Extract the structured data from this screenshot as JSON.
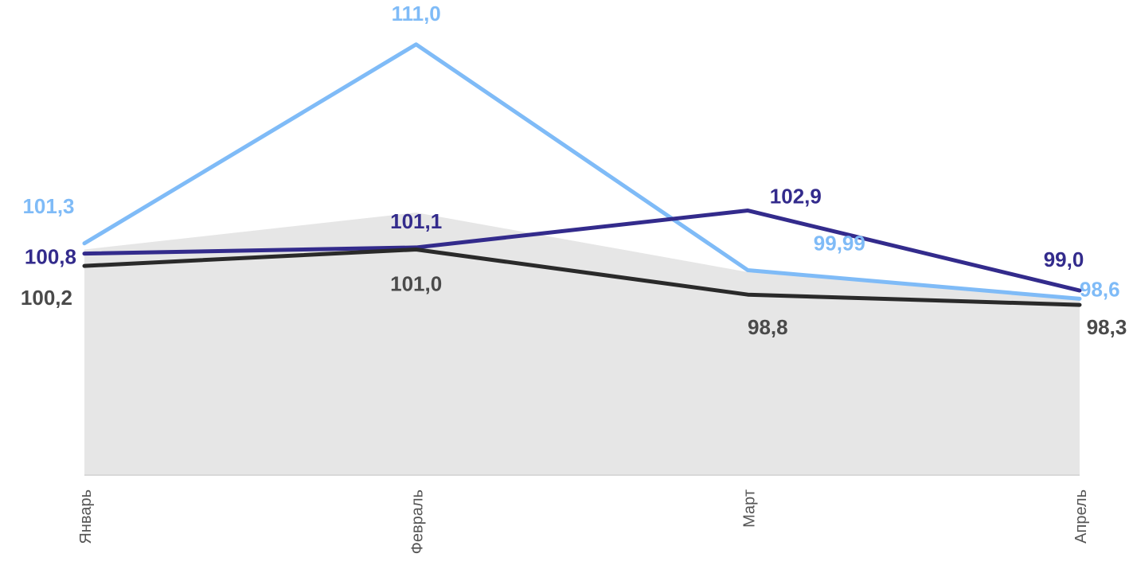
{
  "chart_data": {
    "type": "line",
    "categories": [
      "Январь",
      "Февраль",
      "Март",
      "Апрель"
    ],
    "ylim": [
      90,
      112
    ],
    "grid": false,
    "legend": "none",
    "area": {
      "values": [
        101.0,
        102.8,
        99.9,
        98.6
      ],
      "color": "#e6e6e6"
    },
    "series": [
      {
        "values": [
          101.3,
          111.0,
          99.99,
          98.6
        ],
        "labels": [
          "101,3",
          "111,0",
          "99,99",
          "98,6"
        ],
        "color": "#7fbbf7"
      },
      {
        "values": [
          100.8,
          101.1,
          102.9,
          99.0
        ],
        "labels": [
          "100,8",
          "101,1",
          "102,9",
          "99,0"
        ],
        "color": "#332b8c"
      },
      {
        "values": [
          100.2,
          101.0,
          98.8,
          98.3
        ],
        "labels": [
          "100,2",
          "101,0",
          "98,8",
          "98,3"
        ],
        "color": "#2a2a2a"
      }
    ]
  }
}
